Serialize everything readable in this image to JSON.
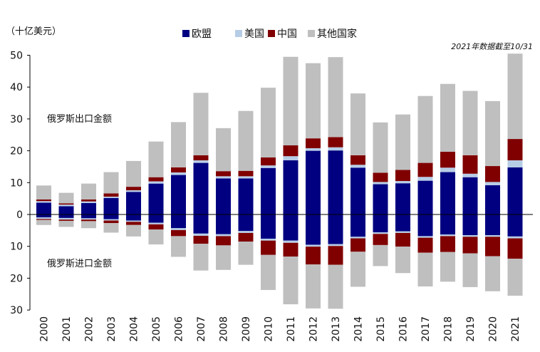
{
  "chart_data": {
    "type": "bar",
    "stacked": true,
    "unit_label": "（十亿美元）",
    "note": "2021年数据截至10/31",
    "export_label": "俄罗斯出口金额",
    "import_label": "俄罗斯进口金额",
    "legend_position": "top-center",
    "categories": [
      "2000",
      "2001",
      "2002",
      "2003",
      "2004",
      "2005",
      "2006",
      "2007",
      "2008",
      "2009",
      "2010",
      "2011",
      "2012",
      "2013",
      "2014",
      "2015",
      "2016",
      "2017",
      "2018",
      "2019",
      "2020",
      "2021"
    ],
    "series": [
      {
        "name": "欧盟",
        "color": "#000080",
        "exports": [
          3.7,
          2.6,
          3.6,
          5.2,
          7.1,
          9.7,
          12.4,
          16.2,
          11.3,
          11.3,
          14.6,
          17.0,
          20.0,
          20.1,
          14.7,
          9.5,
          9.8,
          10.6,
          13.3,
          11.7,
          9.2,
          14.8
        ],
        "imports": [
          0.9,
          1.1,
          1.2,
          1.5,
          1.9,
          2.6,
          4.3,
          6.0,
          6.2,
          5.2,
          7.6,
          8.2,
          9.5,
          9.3,
          7.0,
          5.6,
          5.3,
          6.8,
          6.3,
          6.5,
          6.5,
          6.9
        ]
      },
      {
        "name": "美国",
        "color": "#b7cde6",
        "exports": [
          0.5,
          0.5,
          0.5,
          0.4,
          0.5,
          0.7,
          0.8,
          0.8,
          0.7,
          0.7,
          0.8,
          1.3,
          0.8,
          1.0,
          0.9,
          0.7,
          0.7,
          1.2,
          1.4,
          1.1,
          1.0,
          2.2
        ],
        "imports": [
          0.5,
          0.5,
          0.4,
          0.4,
          0.4,
          0.5,
          0.6,
          0.7,
          0.6,
          0.6,
          0.6,
          0.7,
          0.6,
          0.6,
          0.5,
          0.5,
          0.5,
          0.5,
          0.5,
          0.5,
          0.5,
          0.6
        ]
      },
      {
        "name": "中国",
        "color": "#800000",
        "exports": [
          0.5,
          0.4,
          0.6,
          1.0,
          1.1,
          1.3,
          1.6,
          1.6,
          1.6,
          1.7,
          2.5,
          3.4,
          3.1,
          3.2,
          3.0,
          2.9,
          3.5,
          4.4,
          5.0,
          5.8,
          5.0,
          6.7
        ],
        "imports": [
          0.3,
          0.4,
          0.5,
          0.8,
          1.0,
          1.6,
          1.9,
          2.5,
          2.9,
          2.7,
          4.5,
          4.3,
          5.6,
          5.9,
          4.2,
          3.5,
          4.3,
          4.7,
          5.0,
          5.2,
          6.1,
          6.4
        ]
      },
      {
        "name": "其他国家",
        "color": "#bfbfbf",
        "exports": [
          4.4,
          3.3,
          5.0,
          6.7,
          8.1,
          11.2,
          14.2,
          19.6,
          13.5,
          18.8,
          21.9,
          27.8,
          23.6,
          25.1,
          19.4,
          15.8,
          17.4,
          21.0,
          21.3,
          20.2,
          20.4,
          26.8
        ],
        "imports": [
          1.6,
          1.9,
          2.2,
          3.0,
          3.6,
          4.7,
          6.5,
          8.4,
          7.7,
          7.3,
          11.0,
          15.0,
          13.8,
          13.8,
          11.0,
          6.6,
          8.3,
          10.6,
          9.3,
          10.6,
          11.0,
          11.6
        ]
      }
    ],
    "y_tick_values": [
      -30,
      -20,
      -10,
      0,
      10,
      20,
      30,
      40,
      50
    ],
    "y_tick_labels": [
      "30",
      "20",
      "10",
      "0",
      "10",
      "20",
      "30",
      "40",
      "50"
    ],
    "ylim": [
      -30,
      50
    ]
  }
}
